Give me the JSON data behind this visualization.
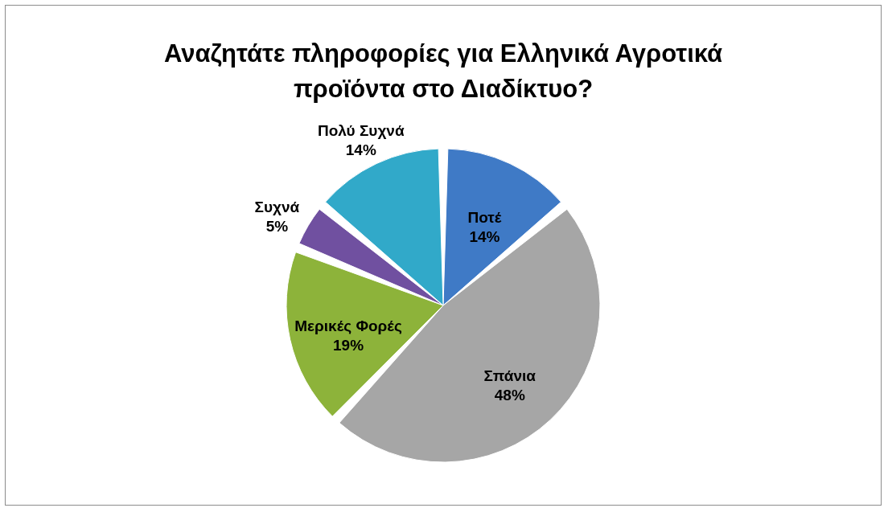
{
  "chart_data": {
    "type": "pie",
    "title": "Αναζητάτε πληροφορίες για Ελληνικά Αγροτικά προϊόντα στο Διαδίκτυο?",
    "categories": [
      "Ποτέ",
      "Σπάνια",
      "Μερικές Φορές",
      "Συχνά",
      "Πολύ Συχνά"
    ],
    "values": [
      14,
      48,
      19,
      5,
      14
    ],
    "value_labels": [
      "14%",
      "48%",
      "19%",
      "5%",
      "14%"
    ],
    "colors": [
      "#3f7ac6",
      "#a6a6a6",
      "#8db33a",
      "#7050a0",
      "#31a9c9"
    ],
    "legend": false
  }
}
